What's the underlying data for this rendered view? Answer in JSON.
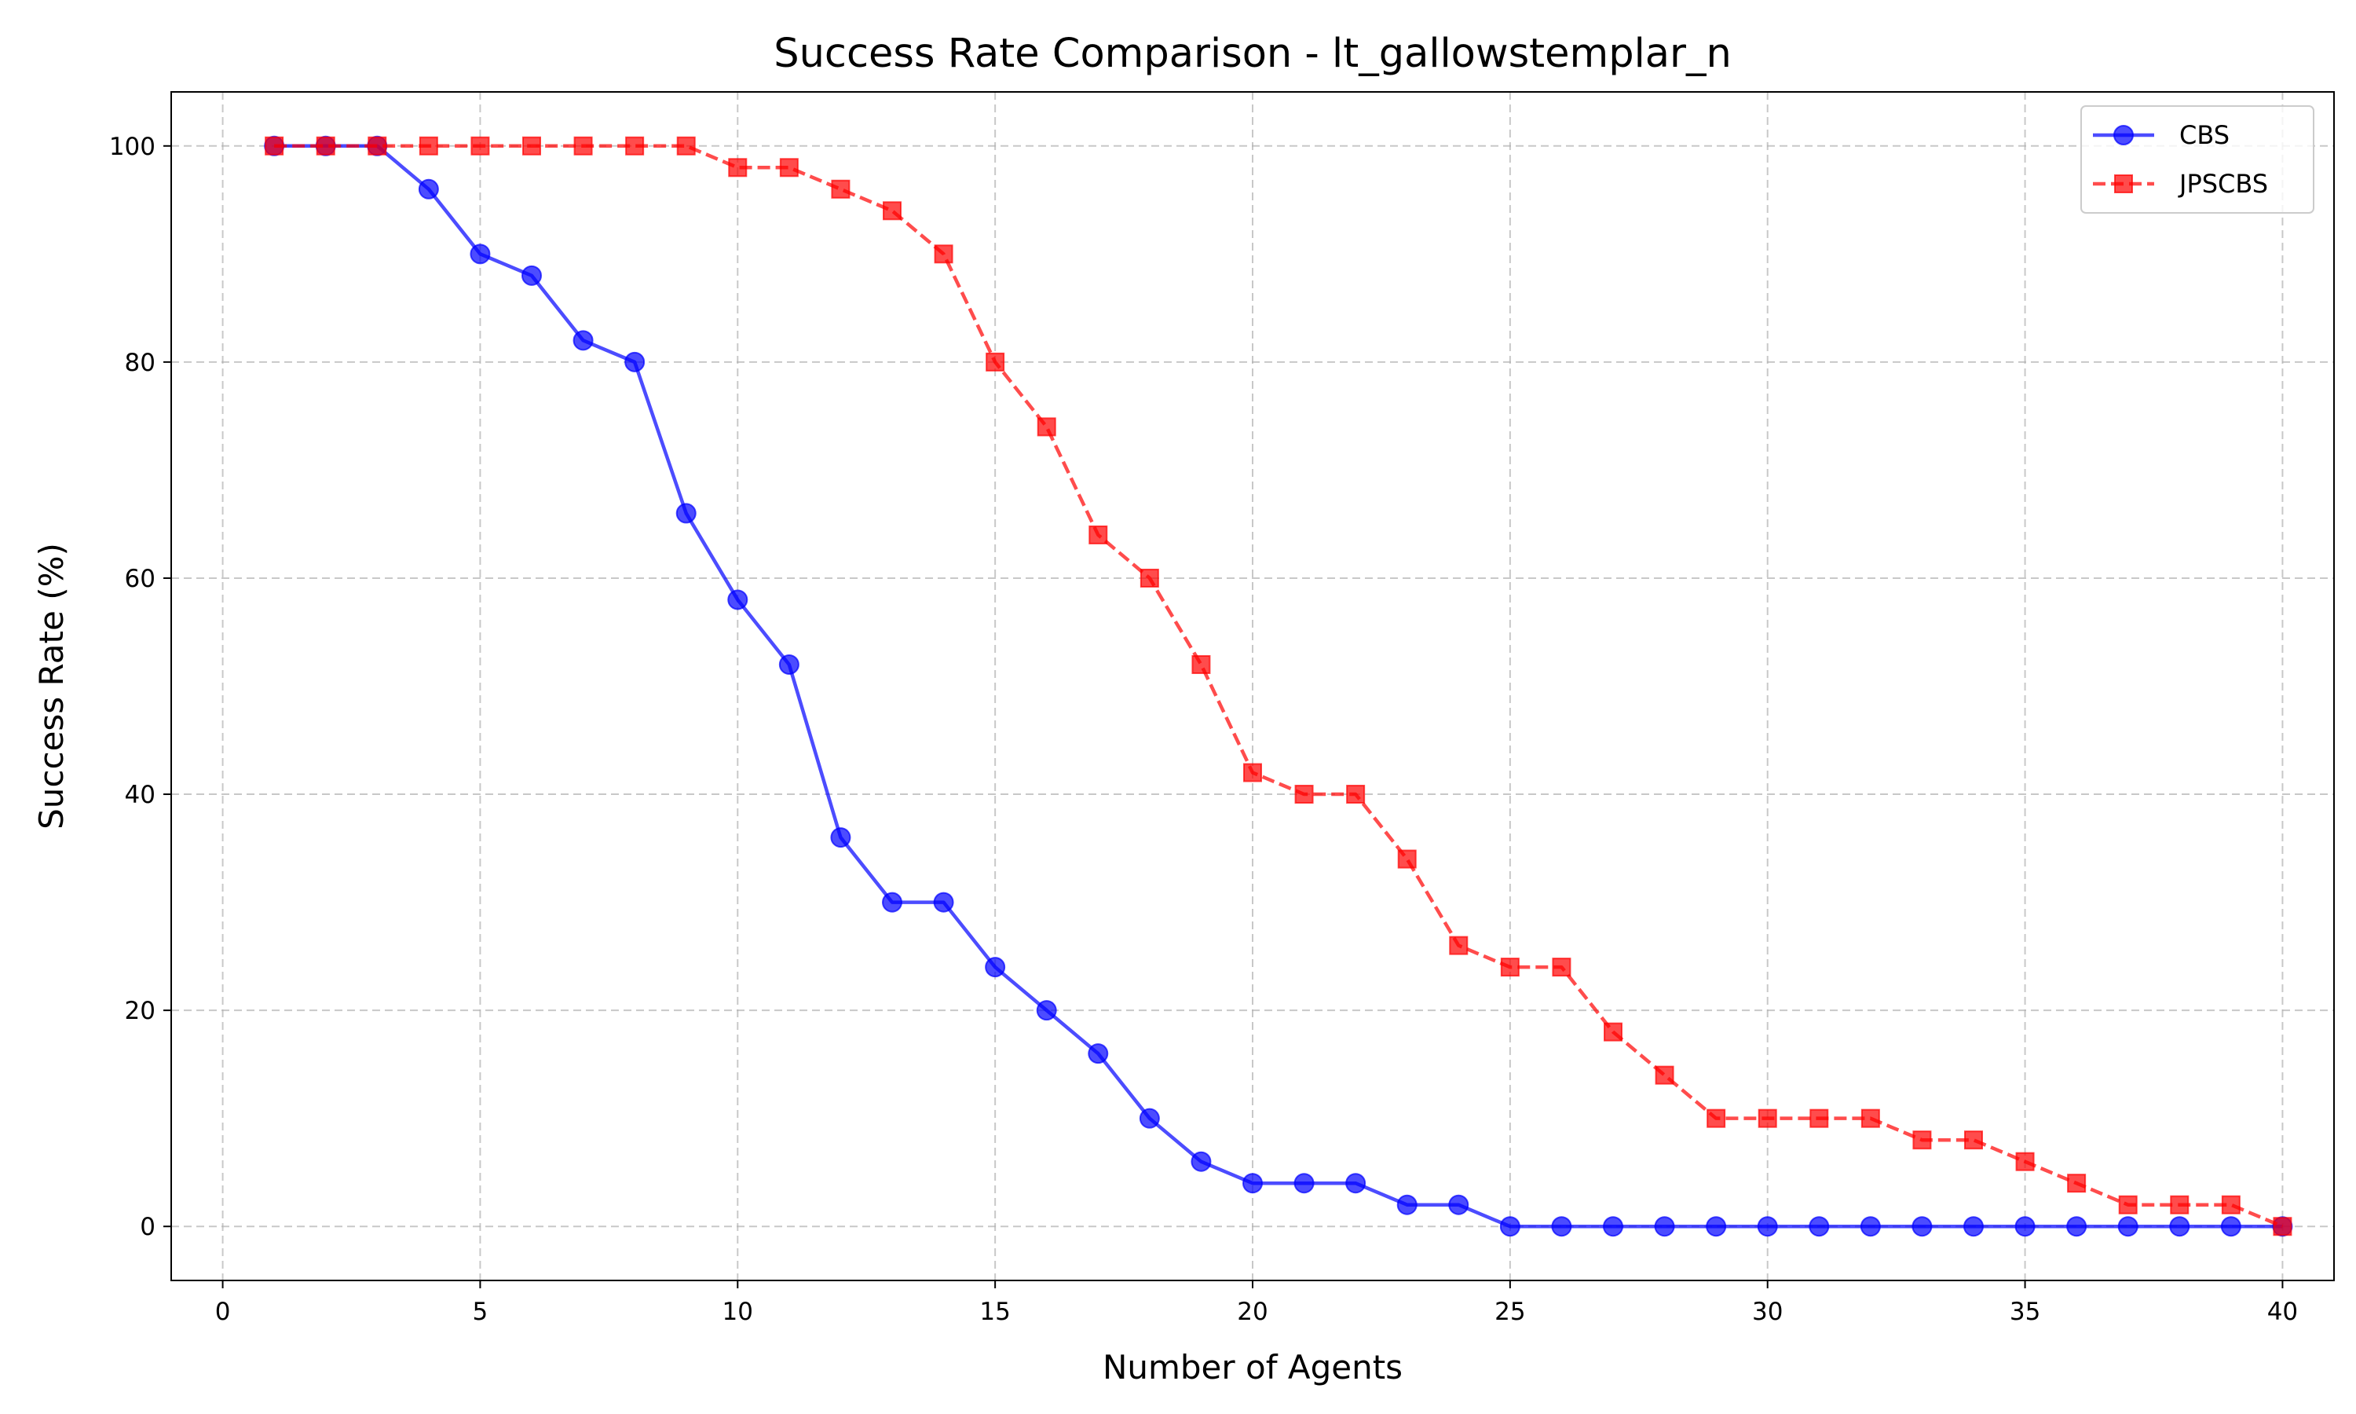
{
  "chart_data": {
    "type": "line",
    "title": "Success Rate Comparison - lt_gallowstemplar_n",
    "xlabel": "Number of Agents",
    "ylabel": "Success Rate (%)",
    "xlim": [
      -1,
      41
    ],
    "ylim": [
      -5,
      105
    ],
    "xticks": [
      0,
      5,
      10,
      15,
      20,
      25,
      30,
      35,
      40
    ],
    "yticks": [
      0,
      20,
      40,
      60,
      80,
      100
    ],
    "grid": true,
    "legend_position": "top-right",
    "x": [
      1,
      2,
      3,
      4,
      5,
      6,
      7,
      8,
      9,
      10,
      11,
      12,
      13,
      14,
      15,
      16,
      17,
      18,
      19,
      20,
      21,
      22,
      23,
      24,
      25,
      26,
      27,
      28,
      29,
      30,
      31,
      32,
      33,
      34,
      35,
      36,
      37,
      38,
      39,
      40
    ],
    "series": [
      {
        "name": "CBS",
        "color": "#0000ff",
        "line_style": "solid",
        "marker": "circle",
        "values": [
          100,
          100,
          100,
          96,
          90,
          88,
          82,
          80,
          66,
          58,
          52,
          36,
          30,
          30,
          24,
          20,
          16,
          10,
          6,
          4,
          4,
          4,
          2,
          2,
          0,
          0,
          0,
          0,
          0,
          0,
          0,
          0,
          0,
          0,
          0,
          0,
          0,
          0,
          0,
          0
        ]
      },
      {
        "name": "JPSCBS",
        "color": "#ff0000",
        "line_style": "dashed",
        "marker": "square",
        "values": [
          100,
          100,
          100,
          100,
          100,
          100,
          100,
          100,
          100,
          98,
          98,
          96,
          94,
          90,
          80,
          74,
          64,
          60,
          52,
          42,
          40,
          40,
          34,
          26,
          24,
          24,
          18,
          14,
          10,
          10,
          10,
          10,
          8,
          8,
          6,
          4,
          2,
          2,
          2,
          0
        ]
      }
    ]
  }
}
